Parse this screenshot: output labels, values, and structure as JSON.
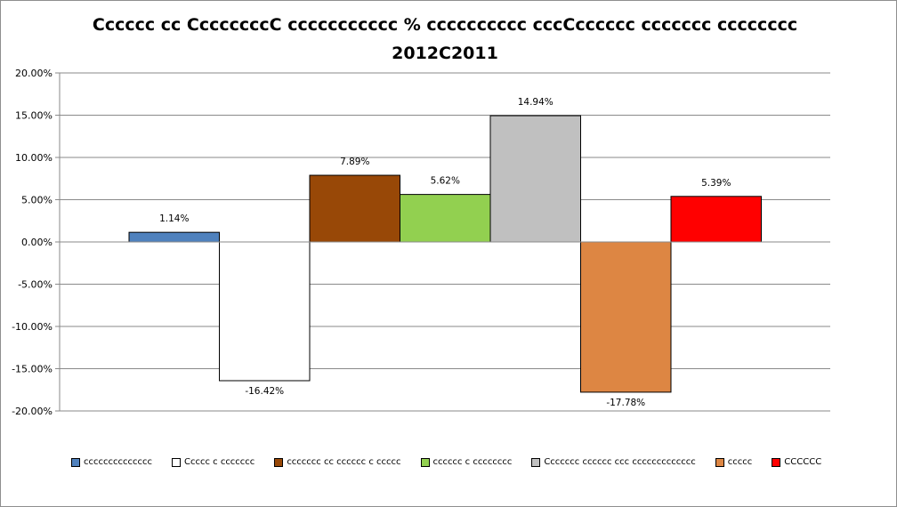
{
  "chart_data": {
    "type": "bar",
    "title_lines": [
      "Cccccc cc CccccccсC ccccccccccc % cccccccccc cccCcccccc ccccccc cccccccc",
      "2012C2011"
    ],
    "ylim": [
      -20,
      20
    ],
    "ytick_step": 5,
    "ytick_labels": [
      "20.00%",
      "15.00%",
      "10.00%",
      "5.00%",
      "0.00%",
      "-5.00%",
      "-10.00%",
      "-15.00%",
      "-20.00%"
    ],
    "grid": true,
    "legend_position": "bottom",
    "series": [
      {
        "name": "cccccccccccccc",
        "value": 1.14,
        "label": "1.14%",
        "color": "#4f81bd"
      },
      {
        "name": "Ccccc c ccccccc",
        "value": -16.42,
        "label": "-16.42%",
        "color": "#ffffff"
      },
      {
        "name": "ccccccc cc cccccc c ccccc",
        "value": 7.89,
        "label": "7.89%",
        "color": "#984807"
      },
      {
        "name": "cccccc c cccccccc",
        "value": 5.62,
        "label": "5.62%",
        "color": "#92d050"
      },
      {
        "name": "Ccccccc cccccc ccc ccccccccccccc",
        "value": 14.94,
        "label": "14.94%",
        "color": "#c0c0c0"
      },
      {
        "name": "ccccc",
        "value": -17.78,
        "label": "-17.78%",
        "color": "#dd8643"
      },
      {
        "name": "CCCCCC",
        "value": 5.39,
        "label": "5.39%",
        "color": "#ff0000"
      }
    ]
  }
}
